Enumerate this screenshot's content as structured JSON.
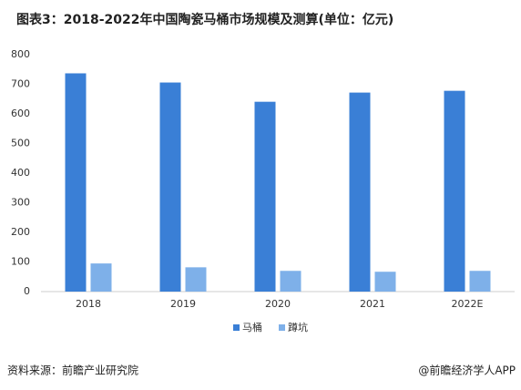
{
  "chart_data": {
    "type": "bar",
    "title": "图表3：2018-2022年中国陶瓷马桶市场规模及测算(单位：亿元)",
    "categories": [
      "2018",
      "2019",
      "2020",
      "2021",
      "2022E"
    ],
    "series": [
      {
        "name": "马桶",
        "color": "#3a7fd6",
        "values": [
          737,
          706,
          641,
          672,
          678
        ]
      },
      {
        "name": "蹲坑",
        "color": "#7eb0e9",
        "values": [
          95,
          82,
          70,
          67,
          70
        ]
      }
    ],
    "ylim": [
      0,
      800
    ],
    "yticks": [
      0,
      100,
      200,
      300,
      400,
      500,
      600,
      700,
      800
    ],
    "grid": false,
    "legend": "bottom",
    "source": "资料来源：前瞻产业研究院",
    "credit": "@前瞻经济学人APP"
  }
}
